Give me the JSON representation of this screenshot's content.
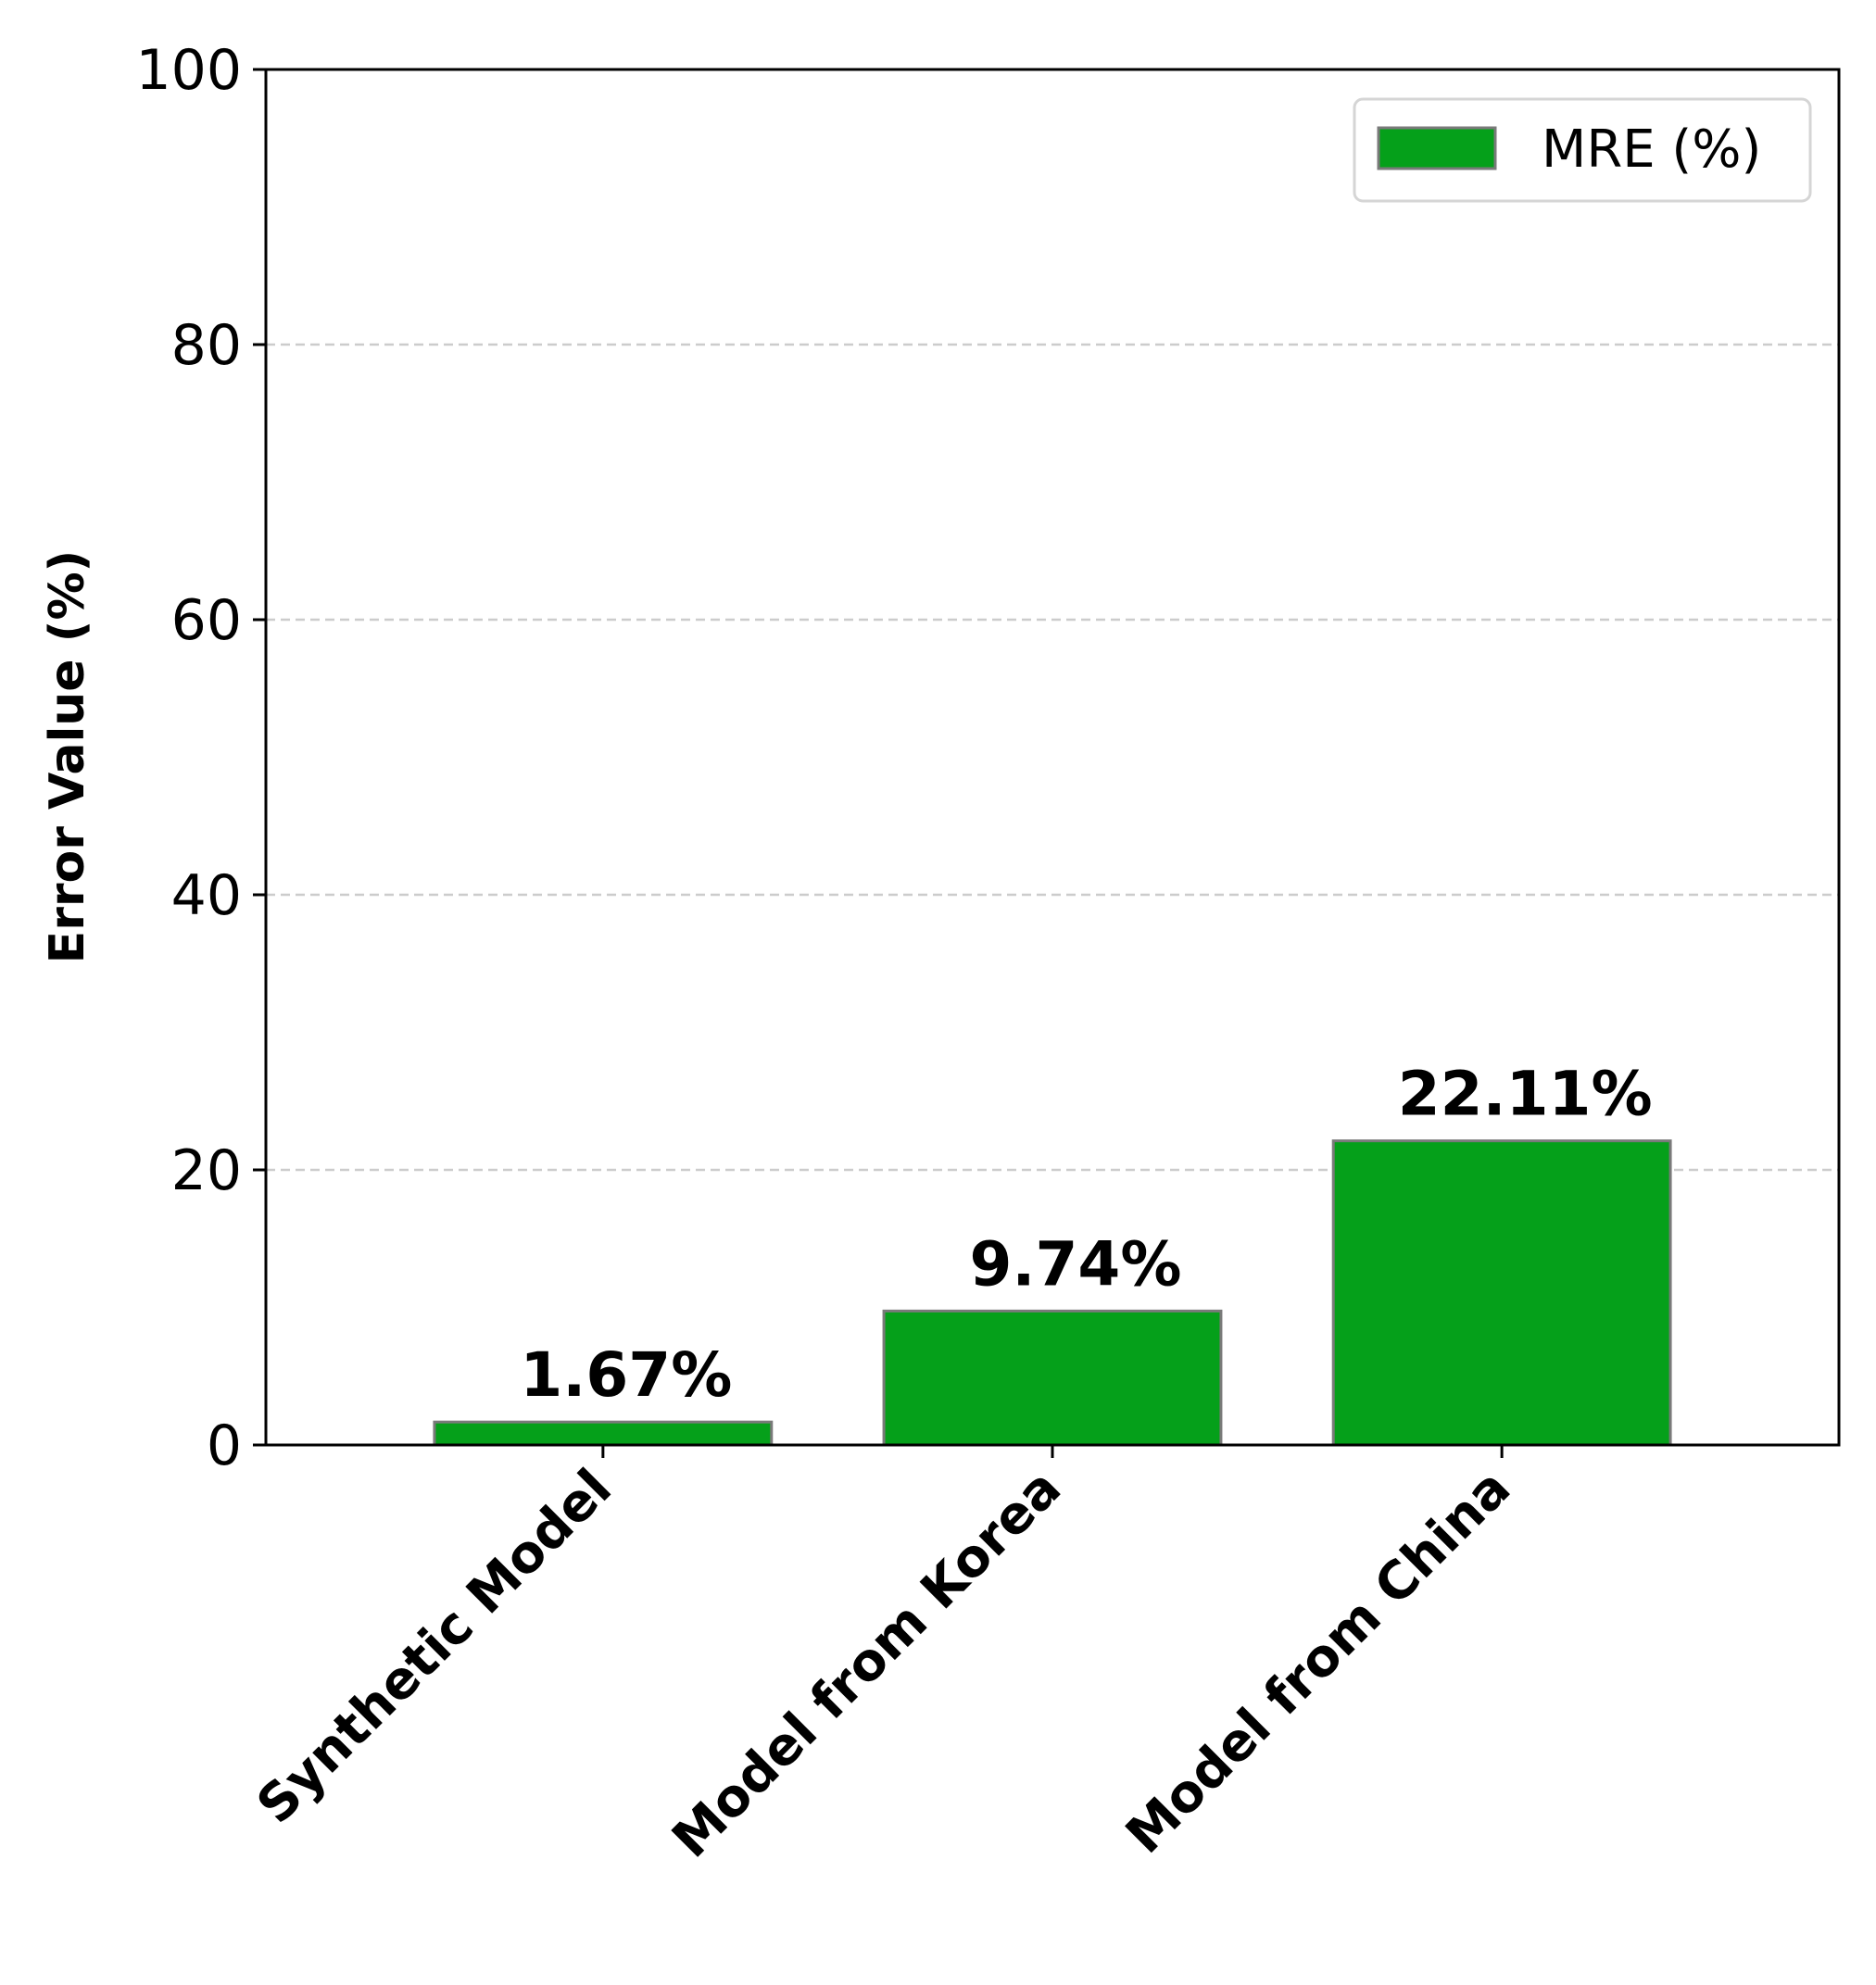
{
  "chart_data": {
    "type": "bar",
    "categories": [
      "Synthetic Model",
      "Model from Korea",
      "Model from China"
    ],
    "series": [
      {
        "name": "MRE (%)",
        "values": [
          1.67,
          9.74,
          22.11
        ]
      }
    ],
    "data_labels": [
      "1.67%",
      "9.74%",
      "22.11%"
    ],
    "title": "",
    "xlabel": "",
    "ylabel": "Error Value (%)",
    "ylim": [
      0,
      100
    ],
    "yticks": [
      0,
      20,
      40,
      60,
      80,
      100
    ],
    "grid": "horizontal dashed",
    "legend_position": "top-right",
    "colors": {
      "bar": "#05a01a",
      "bar_edge": "#7a7a7a",
      "grid": "#cccccc",
      "axis": "#000000"
    }
  }
}
